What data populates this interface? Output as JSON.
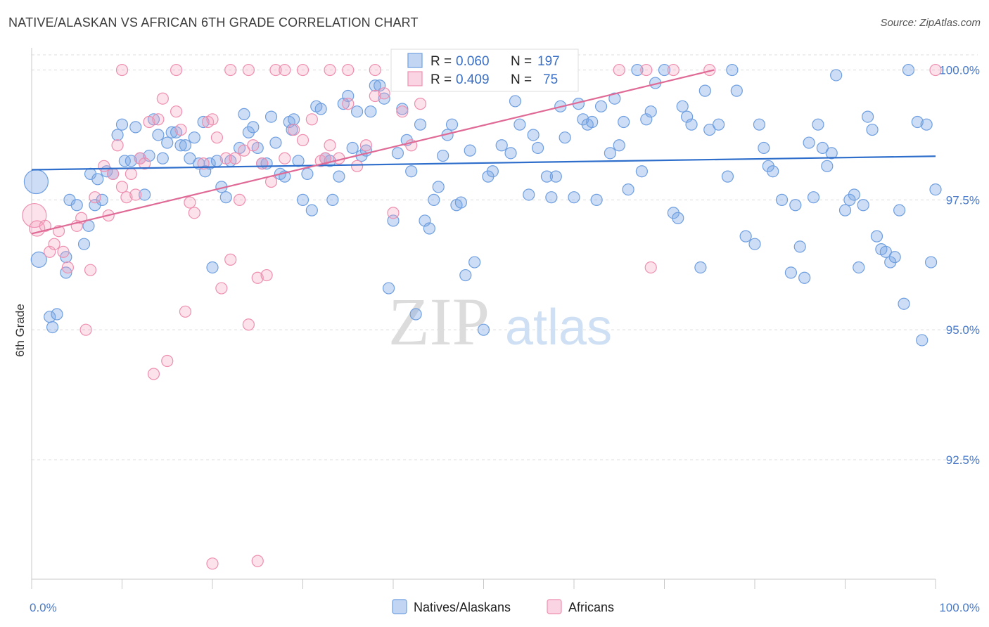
{
  "title": "NATIVE/ALASKAN VS AFRICAN 6TH GRADE CORRELATION CHART",
  "source": "Source: ZipAtlas.com",
  "watermark": {
    "a": "ZIP",
    "b": "atlas"
  },
  "colors": {
    "blue": "#6f9fe0",
    "blue_fill": "rgba(120,165,230,0.38)",
    "blue_line": "#2f6fcb",
    "pink": "#ee8fb0",
    "pink_fill": "rgba(245,160,190,0.30)",
    "pink_line": "#e06a96",
    "tick": "#4a7ac8"
  },
  "stats": {
    "row1": {
      "r_label": "R = ",
      "r_value": "0.060",
      "n_label": "N = ",
      "n_value": "197"
    },
    "row2": {
      "r_label": "R = ",
      "r_value": "0.409",
      "n_label": "N = ",
      "n_value": "75"
    }
  },
  "legend": {
    "series1": "Natives/Alaskans",
    "series2": "Africans"
  },
  "chart_data": {
    "type": "scatter",
    "title": "NATIVE/ALASKAN VS AFRICAN 6TH GRADE CORRELATION CHART",
    "xlabel": "",
    "ylabel": "6th Grade",
    "xlim": [
      0,
      100
    ],
    "ylim": [
      90.2,
      100.4
    ],
    "x_tick_labels": [
      "0.0%",
      "100.0%"
    ],
    "y_ticks": [
      92.5,
      95.0,
      97.5,
      100.0
    ],
    "y_tick_labels": [
      "92.5%",
      "95.0%",
      "97.5%",
      "100.0%"
    ],
    "grid": true,
    "legend_position": "bottom-center",
    "series": [
      {
        "name": "Natives/Alaskans",
        "color": "#6f9fe0",
        "trend": [
          [
            0,
            98.08
          ],
          [
            100,
            98.34
          ]
        ],
        "points": [
          [
            0.5,
            97.85
          ],
          [
            0.8,
            96.35
          ],
          [
            2,
            95.25
          ],
          [
            2.3,
            95.05
          ],
          [
            2.8,
            95.3
          ],
          [
            3.8,
            96.4
          ],
          [
            3.8,
            96.1
          ],
          [
            4.2,
            97.5
          ],
          [
            5,
            97.4
          ],
          [
            5.8,
            96.65
          ],
          [
            6.3,
            97.0
          ],
          [
            6.5,
            98.0
          ],
          [
            7,
            97.4
          ],
          [
            7.3,
            97.9
          ],
          [
            7.8,
            97.5
          ],
          [
            8.3,
            98.05
          ],
          [
            9,
            98.0
          ],
          [
            9.5,
            98.75
          ],
          [
            10,
            98.95
          ],
          [
            10.3,
            98.25
          ],
          [
            11,
            98.25
          ],
          [
            11.5,
            98.9
          ],
          [
            12,
            98.3
          ],
          [
            12.5,
            97.6
          ],
          [
            13,
            98.35
          ],
          [
            13.5,
            99.05
          ],
          [
            14,
            98.75
          ],
          [
            14.5,
            98.3
          ],
          [
            15,
            98.6
          ],
          [
            15.5,
            98.8
          ],
          [
            16,
            98.8
          ],
          [
            16.5,
            98.55
          ],
          [
            17,
            98.55
          ],
          [
            17.5,
            98.3
          ],
          [
            18,
            98.7
          ],
          [
            18.5,
            98.2
          ],
          [
            19,
            99.0
          ],
          [
            19.2,
            98.05
          ],
          [
            19.7,
            98.2
          ],
          [
            20,
            96.2
          ],
          [
            20.5,
            98.25
          ],
          [
            21,
            97.75
          ],
          [
            21.5,
            97.55
          ],
          [
            22,
            98.25
          ],
          [
            23,
            98.5
          ],
          [
            23.5,
            99.15
          ],
          [
            24,
            98.8
          ],
          [
            24.5,
            98.9
          ],
          [
            25,
            98.5
          ],
          [
            25.5,
            98.2
          ],
          [
            26,
            98.2
          ],
          [
            26.5,
            99.1
          ],
          [
            27,
            98.6
          ],
          [
            27.5,
            98.0
          ],
          [
            28,
            97.95
          ],
          [
            28.5,
            99.0
          ],
          [
            28.8,
            98.85
          ],
          [
            29,
            99.05
          ],
          [
            29.5,
            98.25
          ],
          [
            30,
            97.5
          ],
          [
            30.5,
            98.0
          ],
          [
            31,
            97.3
          ],
          [
            31.5,
            99.3
          ],
          [
            32,
            99.25
          ],
          [
            32.5,
            98.3
          ],
          [
            33,
            98.25
          ],
          [
            33.3,
            97.5
          ],
          [
            34,
            97.95
          ],
          [
            34.5,
            99.35
          ],
          [
            35,
            99.5
          ],
          [
            35.5,
            98.5
          ],
          [
            36,
            99.2
          ],
          [
            36.5,
            98.35
          ],
          [
            37,
            98.45
          ],
          [
            37.5,
            99.2
          ],
          [
            38,
            99.7
          ],
          [
            38.5,
            99.7
          ],
          [
            39,
            99.45
          ],
          [
            39.5,
            95.8
          ],
          [
            40,
            97.1
          ],
          [
            40.5,
            98.4
          ],
          [
            41,
            99.25
          ],
          [
            41.5,
            98.65
          ],
          [
            42,
            98.05
          ],
          [
            42.5,
            95.3
          ],
          [
            43,
            98.95
          ],
          [
            43.5,
            97.1
          ],
          [
            44,
            96.95
          ],
          [
            44.5,
            97.5
          ],
          [
            45,
            97.75
          ],
          [
            45.5,
            98.35
          ],
          [
            46,
            98.75
          ],
          [
            46.5,
            98.95
          ],
          [
            47,
            97.4
          ],
          [
            47.5,
            97.45
          ],
          [
            48,
            96.05
          ],
          [
            48.5,
            98.45
          ],
          [
            49,
            96.3
          ],
          [
            49.5,
            99.9
          ],
          [
            50,
            95.0
          ],
          [
            50.5,
            97.95
          ],
          [
            51,
            98.05
          ],
          [
            52,
            98.55
          ],
          [
            53,
            98.4
          ],
          [
            53.5,
            99.4
          ],
          [
            54,
            98.95
          ],
          [
            55,
            97.6
          ],
          [
            55.5,
            98.75
          ],
          [
            56,
            98.5
          ],
          [
            56.5,
            99.9
          ],
          [
            57,
            97.95
          ],
          [
            57.5,
            97.55
          ],
          [
            58,
            97.95
          ],
          [
            58.5,
            99.3
          ],
          [
            59,
            98.7
          ],
          [
            60,
            97.55
          ],
          [
            60.5,
            99.35
          ],
          [
            61,
            99.05
          ],
          [
            61.5,
            98.95
          ],
          [
            62,
            99.0
          ],
          [
            62.5,
            97.5
          ],
          [
            63,
            99.3
          ],
          [
            64,
            98.4
          ],
          [
            64.5,
            99.45
          ],
          [
            65,
            98.55
          ],
          [
            65.5,
            99.0
          ],
          [
            66,
            97.7
          ],
          [
            67,
            100.0
          ],
          [
            67.5,
            98.05
          ],
          [
            68,
            99.05
          ],
          [
            68.5,
            99.2
          ],
          [
            69,
            99.75
          ],
          [
            70,
            100.0
          ],
          [
            71,
            97.25
          ],
          [
            71.5,
            97.15
          ],
          [
            72,
            99.3
          ],
          [
            72.5,
            99.1
          ],
          [
            73,
            98.95
          ],
          [
            74,
            96.2
          ],
          [
            74.5,
            99.6
          ],
          [
            75,
            98.85
          ],
          [
            76,
            98.95
          ],
          [
            77,
            97.95
          ],
          [
            77.5,
            100.0
          ],
          [
            78,
            99.6
          ],
          [
            79,
            96.8
          ],
          [
            80,
            96.65
          ],
          [
            80.5,
            98.95
          ],
          [
            81,
            98.5
          ],
          [
            81.5,
            98.15
          ],
          [
            82,
            98.05
          ],
          [
            83,
            97.5
          ],
          [
            84,
            96.1
          ],
          [
            84.5,
            97.4
          ],
          [
            85,
            96.6
          ],
          [
            85.5,
            96.0
          ],
          [
            86,
            98.6
          ],
          [
            86.5,
            97.55
          ],
          [
            87,
            98.95
          ],
          [
            87.5,
            98.5
          ],
          [
            88,
            98.15
          ],
          [
            88.5,
            98.4
          ],
          [
            89,
            99.9
          ],
          [
            90,
            97.3
          ],
          [
            90.5,
            97.5
          ],
          [
            91,
            97.6
          ],
          [
            91.5,
            96.2
          ],
          [
            92,
            97.4
          ],
          [
            92.5,
            99.1
          ],
          [
            93,
            98.85
          ],
          [
            93.5,
            96.8
          ],
          [
            94,
            96.55
          ],
          [
            94.5,
            96.5
          ],
          [
            95,
            96.3
          ],
          [
            95.5,
            96.4
          ],
          [
            96,
            97.3
          ],
          [
            97,
            100.0
          ],
          [
            98,
            99.0
          ],
          [
            99,
            98.95
          ],
          [
            100,
            97.7
          ],
          [
            99.5,
            96.3
          ],
          [
            98.5,
            94.8
          ],
          [
            96.5,
            95.5
          ]
        ]
      },
      {
        "name": "Africans",
        "color": "#ee8fb0",
        "trend": [
          [
            0,
            96.85
          ],
          [
            75.5,
            100.0
          ]
        ],
        "points": [
          [
            0.3,
            97.2
          ],
          [
            0.6,
            96.95
          ],
          [
            1.5,
            97.0
          ],
          [
            2,
            96.5
          ],
          [
            2.5,
            96.65
          ],
          [
            3,
            96.9
          ],
          [
            3.5,
            96.5
          ],
          [
            4,
            96.2
          ],
          [
            5,
            97.0
          ],
          [
            5.5,
            97.15
          ],
          [
            6,
            95.0
          ],
          [
            6.5,
            96.15
          ],
          [
            7,
            97.55
          ],
          [
            8,
            98.15
          ],
          [
            8.5,
            97.2
          ],
          [
            9,
            98.0
          ],
          [
            9.5,
            98.55
          ],
          [
            10,
            97.75
          ],
          [
            10.5,
            97.55
          ],
          [
            11,
            98.0
          ],
          [
            11.5,
            97.6
          ],
          [
            12,
            98.3
          ],
          [
            12.5,
            98.2
          ],
          [
            13,
            99.0
          ],
          [
            13.5,
            94.15
          ],
          [
            14,
            99.05
          ],
          [
            14.5,
            99.45
          ],
          [
            15,
            94.4
          ],
          [
            16,
            99.2
          ],
          [
            16.5,
            98.85
          ],
          [
            17,
            95.35
          ],
          [
            17.5,
            97.45
          ],
          [
            18,
            97.25
          ],
          [
            19,
            98.2
          ],
          [
            19.5,
            99.0
          ],
          [
            20,
            99.05
          ],
          [
            20.5,
            98.7
          ],
          [
            21,
            95.8
          ],
          [
            21.5,
            98.3
          ],
          [
            22,
            96.35
          ],
          [
            22.5,
            98.3
          ],
          [
            23,
            97.5
          ],
          [
            23.5,
            98.45
          ],
          [
            24,
            95.1
          ],
          [
            24.5,
            98.55
          ],
          [
            25,
            96.0
          ],
          [
            25.5,
            98.2
          ],
          [
            26,
            96.05
          ],
          [
            26.5,
            97.85
          ],
          [
            27,
            100.0
          ],
          [
            28,
            98.3
          ],
          [
            29,
            98.85
          ],
          [
            30,
            98.65
          ],
          [
            31,
            99.05
          ],
          [
            32,
            98.25
          ],
          [
            32.5,
            98.3
          ],
          [
            33,
            98.55
          ],
          [
            34,
            98.3
          ],
          [
            35,
            99.35
          ],
          [
            36,
            98.15
          ],
          [
            37,
            98.55
          ],
          [
            38,
            99.5
          ],
          [
            39,
            99.55
          ],
          [
            40,
            97.25
          ],
          [
            41,
            99.2
          ],
          [
            42,
            98.55
          ],
          [
            43,
            99.35
          ],
          [
            20,
            90.5
          ],
          [
            25,
            90.55
          ],
          [
            10,
            100.0
          ],
          [
            16,
            100.0
          ],
          [
            22,
            100.0
          ],
          [
            24,
            100.0
          ],
          [
            28,
            100.0
          ],
          [
            30,
            100.0
          ],
          [
            33,
            100.0
          ],
          [
            35,
            100.0
          ],
          [
            38,
            100.0
          ],
          [
            45,
            100.0
          ],
          [
            50,
            100.0
          ],
          [
            65,
            100.0
          ],
          [
            68,
            100.0
          ],
          [
            71,
            100.0
          ],
          [
            75,
            100.0
          ],
          [
            100,
            100.0
          ],
          [
            68.5,
            96.2
          ]
        ]
      }
    ]
  }
}
